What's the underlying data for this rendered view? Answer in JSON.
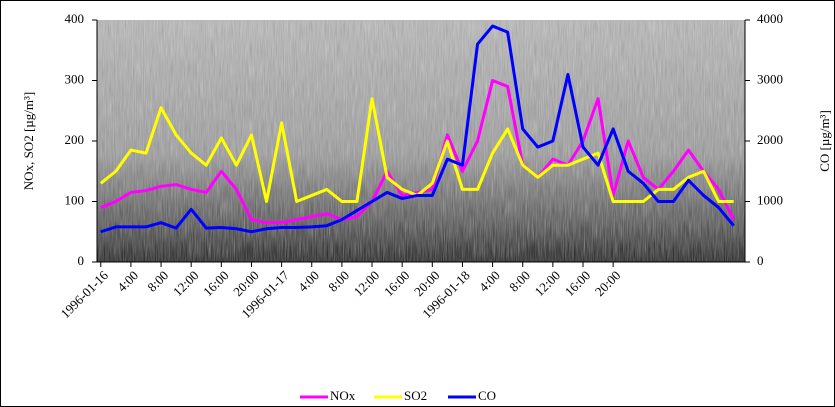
{
  "chart_data": {
    "type": "line",
    "y_label": "NOx, SO2 [µg/m³]",
    "y2_label": "CO [µg/m³]",
    "x": [
      0,
      2,
      4,
      6,
      8,
      10,
      12,
      14,
      16,
      18,
      20,
      22,
      24,
      26,
      28,
      30,
      32,
      34,
      36,
      38,
      40,
      42,
      44,
      46,
      48,
      50,
      52,
      54,
      56,
      58,
      60,
      62,
      64,
      66,
      68,
      70,
      72,
      74,
      76,
      78,
      80,
      82,
      84
    ],
    "xlim": [
      -0.5,
      85.5
    ],
    "xticks": [
      {
        "value": 0,
        "label": "1996-01-16"
      },
      {
        "value": 4,
        "label": "4:00"
      },
      {
        "value": 8,
        "label": "8:00"
      },
      {
        "value": 12,
        "label": "12:00"
      },
      {
        "value": 16,
        "label": "16:00"
      },
      {
        "value": 20,
        "label": "20:00"
      },
      {
        "value": 24,
        "label": "1996-01-17"
      },
      {
        "value": 28,
        "label": "4:00"
      },
      {
        "value": 32,
        "label": "8:00"
      },
      {
        "value": 36,
        "label": "12:00"
      },
      {
        "value": 40,
        "label": "16:00"
      },
      {
        "value": 44,
        "label": "20:00"
      },
      {
        "value": 48,
        "label": "1996-01-18"
      },
      {
        "value": 52,
        "label": "4:00"
      },
      {
        "value": 56,
        "label": "8:00"
      },
      {
        "value": 60,
        "label": "12:00"
      },
      {
        "value": 64,
        "label": "16:00"
      },
      {
        "value": 68,
        "label": "20:00"
      }
    ],
    "ylim": [
      0,
      400
    ],
    "yticks": [
      0,
      100,
      200,
      300,
      400
    ],
    "y2lim": [
      0,
      4000
    ],
    "y2ticks": [
      0,
      1000,
      2000,
      3000,
      4000
    ],
    "series": [
      {
        "name": "NOx",
        "color": "#ff00ff",
        "values": [
          90,
          100,
          115,
          118,
          125,
          128,
          120,
          115,
          150,
          120,
          70,
          65,
          65,
          70,
          75,
          80,
          70,
          75,
          100,
          150,
          110,
          115,
          120,
          210,
          150,
          200,
          300,
          290,
          160,
          140,
          170,
          160,
          200,
          270,
          110,
          200,
          140,
          120,
          150,
          185,
          150,
          120,
          70
        ]
      },
      {
        "name": "SO2",
        "color": "#ffff00",
        "values": [
          130,
          150,
          185,
          180,
          255,
          210,
          180,
          160,
          205,
          160,
          210,
          100,
          230,
          100,
          110,
          120,
          100,
          100,
          270,
          140,
          120,
          110,
          130,
          200,
          120,
          120,
          180,
          220,
          160,
          140,
          160,
          160,
          170,
          180,
          100,
          100,
          100,
          120,
          120,
          140,
          150,
          100,
          100
        ]
      },
      {
        "name": "CO",
        "color": "#0000ff",
        "axis": "y2",
        "values": [
          500,
          580,
          580,
          580,
          650,
          560,
          870,
          560,
          570,
          550,
          500,
          550,
          570,
          570,
          580,
          600,
          700,
          850,
          1000,
          1150,
          1050,
          1100,
          1100,
          1700,
          1600,
          3600,
          3900,
          3800,
          2200,
          1900,
          2000,
          3100,
          1900,
          1600,
          2200,
          1500,
          1300,
          1000,
          1000,
          1350,
          1100,
          900,
          600
        ]
      }
    ]
  }
}
